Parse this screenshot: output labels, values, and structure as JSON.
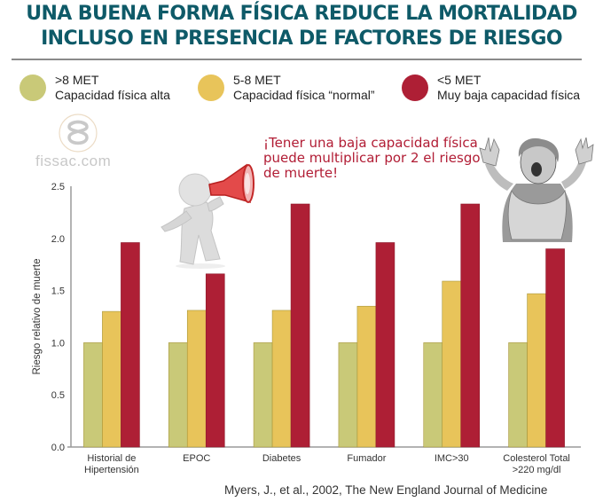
{
  "header": {
    "title_line1": "UNA BUENA FORMA FÍSICA REDUCE LA MORTALIDAD",
    "title_line2": "INCLUSO EN PRESENCIA DE FACTORES DE RIESGO"
  },
  "legend": [
    {
      "line1": ">8 MET",
      "line2": "Capacidad física alta",
      "color": "#c9c978"
    },
    {
      "line1": "5-8 MET",
      "line2": "Capacidad física “normal”",
      "color": "#e8c45a"
    },
    {
      "line1": "<5 MET",
      "line2": "Muy baja capacidad física",
      "color": "#ae1f35"
    }
  ],
  "watermark": {
    "text": "fissac.com",
    "icon": "fissac-logo-icon"
  },
  "callout": {
    "line1": "¡Tener una baja capacidad física",
    "line2": "puede multiplicar por 2 el riesgo",
    "line3": "de muerte!"
  },
  "illustrations": {
    "left": "megaphone-figure-icon",
    "right": "scared-woman-icon"
  },
  "source": "Myers, J., et al., 2002, The New England Journal of Medicine",
  "chart_data": {
    "type": "bar",
    "title": "UNA BUENA FORMA FÍSICA REDUCE LA MORTALIDAD INCLUSO EN PRESENCIA DE FACTORES DE RIESGO",
    "xlabel": "",
    "ylabel": "Riesgo relativo de muerte",
    "ylim": [
      0,
      2.5
    ],
    "yticks": [
      "0.0",
      "0.5",
      "1.0",
      "1.5",
      "2.0",
      "2.5"
    ],
    "ytick_values": [
      0,
      0.5,
      1.0,
      1.5,
      2.0,
      2.5
    ],
    "grid": false,
    "legend_position": "top",
    "categories": [
      [
        "Historial de",
        "Hipertensión"
      ],
      [
        "EPOC"
      ],
      [
        "Diabetes"
      ],
      [
        "Fumador"
      ],
      [
        "IMC>30"
      ],
      [
        "Colesterol Total",
        ">220 mg/dl"
      ]
    ],
    "series": [
      {
        "name": ">8 MET Capacidad física alta",
        "color": "#c9c978",
        "values": [
          1.0,
          1.0,
          1.0,
          1.0,
          1.0,
          1.0
        ]
      },
      {
        "name": "5-8 MET Capacidad física “normal”",
        "color": "#e8c45a",
        "values": [
          1.3,
          1.31,
          1.31,
          1.35,
          1.59,
          1.47
        ]
      },
      {
        "name": "<5 MET Muy baja capacidad física",
        "color": "#ae1f35",
        "values": [
          1.96,
          1.66,
          2.33,
          1.96,
          2.33,
          1.9
        ]
      }
    ]
  }
}
